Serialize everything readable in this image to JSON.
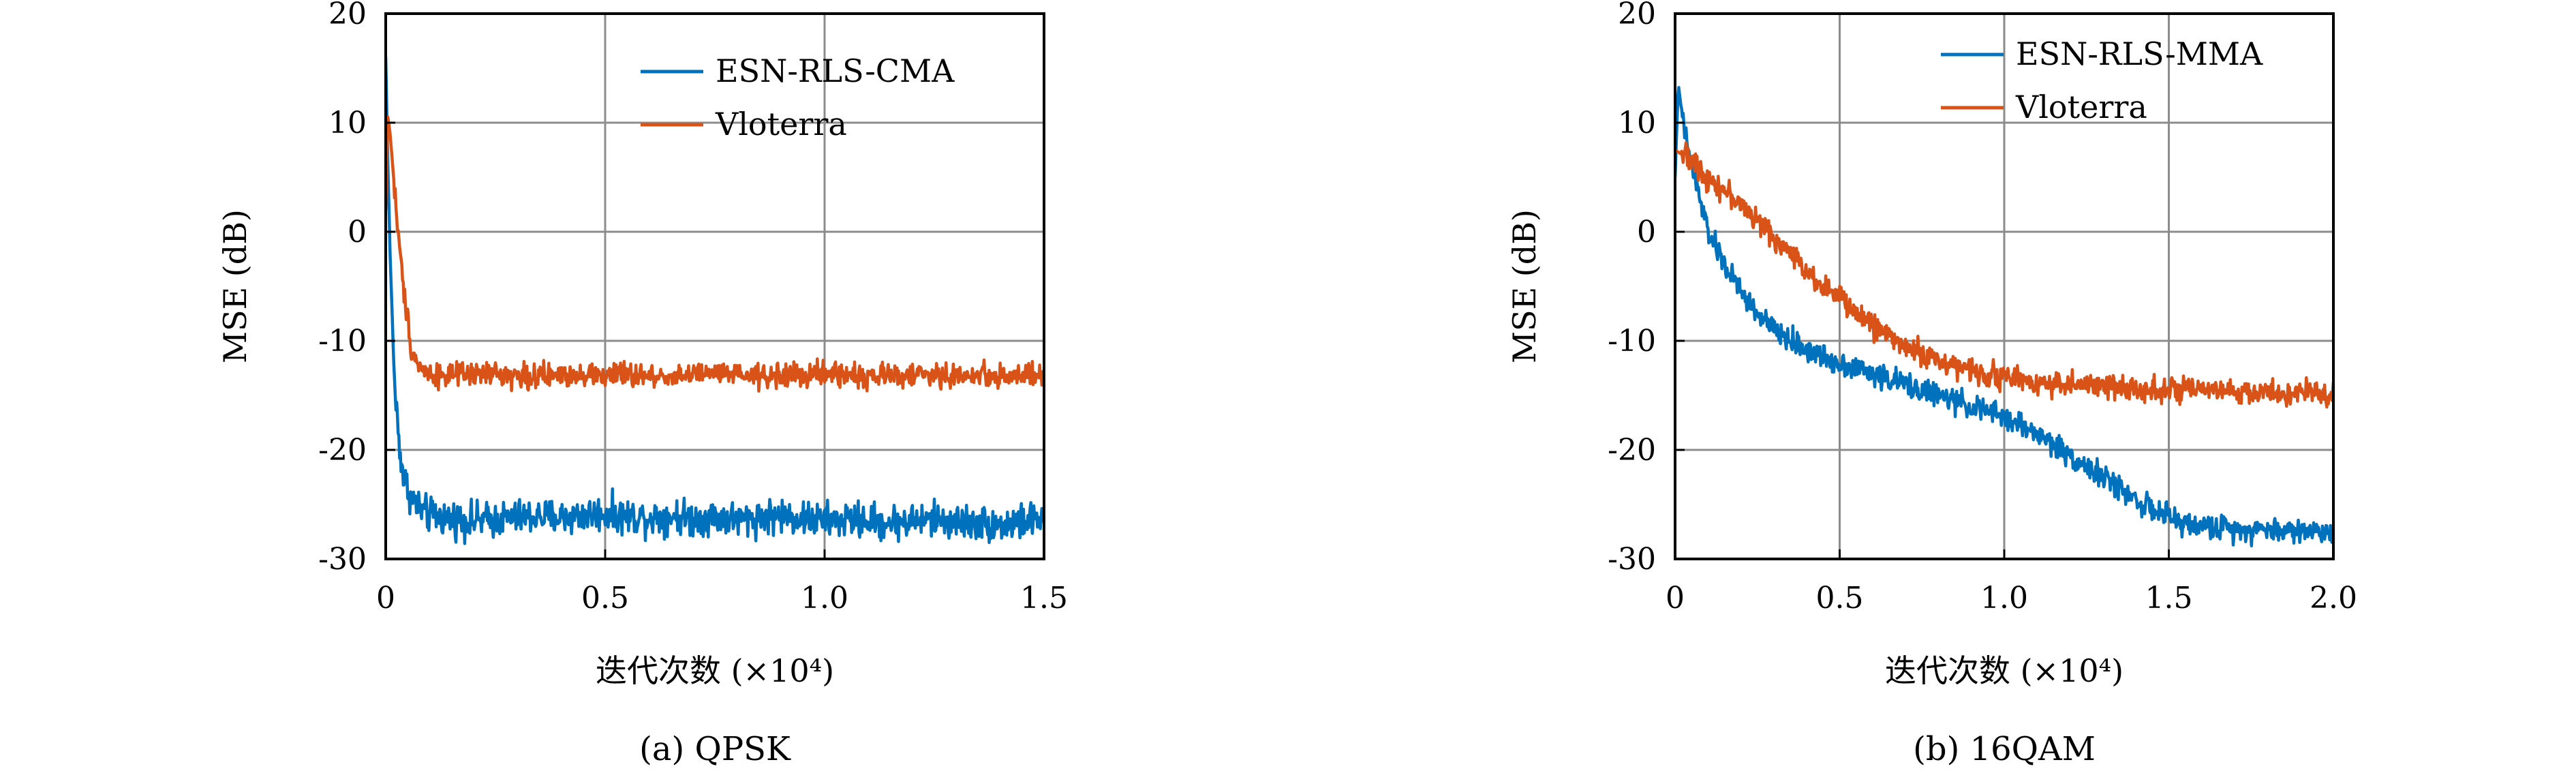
{
  "chart_data": [
    {
      "type": "line",
      "caption": "(a) QPSK",
      "xlabel": "迭代次数 (×10⁴)",
      "ylabel": "MSE (dB)",
      "xlim": [
        0,
        1.5
      ],
      "ylim": [
        -30,
        20
      ],
      "xticks": [
        "0",
        "0.5",
        "1.0",
        "1.5"
      ],
      "yticks": [
        "20",
        "10",
        "0",
        "-10",
        "-20",
        "-30"
      ],
      "xtick_values": [
        0,
        0.5,
        1.0,
        1.5
      ],
      "ytick_values": [
        20,
        10,
        0,
        -10,
        -20,
        -30
      ],
      "grid": true,
      "legend_position": "top-right",
      "series": [
        {
          "name": "ESN-RLS-CMA",
          "color": "#0072BD",
          "x": [
            0,
            0.005,
            0.01,
            0.015,
            0.02,
            0.03,
            0.04,
            0.06,
            0.08,
            0.1,
            0.15,
            0.2,
            0.25,
            0.3,
            0.35,
            0.4,
            0.45,
            0.5,
            0.55,
            0.6,
            0.65,
            0.7,
            0.75,
            0.8,
            0.85,
            0.9,
            0.95,
            1.0,
            1.05,
            1.1,
            1.15,
            1.2,
            1.25,
            1.3,
            1.35,
            1.4,
            1.45,
            1.5
          ],
          "y": [
            16,
            6,
            -2,
            -8,
            -14,
            -19,
            -22.5,
            -24.5,
            -25.5,
            -26,
            -26.3,
            -26.5,
            -26.4,
            -26.2,
            -26.1,
            -26.2,
            -26.0,
            -25.8,
            -26.1,
            -26.2,
            -26.0,
            -26.3,
            -26.1,
            -26.4,
            -26.2,
            -26.0,
            -26.3,
            -26.5,
            -26.4,
            -26.5,
            -26.7,
            -26.5,
            -26.4,
            -26.6,
            -26.7,
            -26.9,
            -26.6,
            -26.3
          ]
        },
        {
          "name": "Vloterra",
          "color": "#D95319",
          "x": [
            0,
            0.005,
            0.01,
            0.02,
            0.03,
            0.04,
            0.05,
            0.06,
            0.08,
            0.1,
            0.15,
            0.2,
            0.25,
            0.3,
            0.35,
            0.4,
            0.45,
            0.5,
            0.55,
            0.6,
            0.65,
            0.7,
            0.75,
            0.8,
            0.85,
            0.9,
            0.95,
            1.0,
            1.05,
            1.1,
            1.15,
            1.2,
            1.25,
            1.3,
            1.35,
            1.4,
            1.45,
            1.5
          ],
          "y": [
            2,
            10.5,
            9,
            4,
            -1,
            -5,
            -8,
            -11,
            -12.5,
            -13,
            -13.2,
            -13.1,
            -13.0,
            -13.2,
            -13.3,
            -13.1,
            -13.0,
            -13.2,
            -13.1,
            -13.3,
            -13.2,
            -13.1,
            -13.0,
            -13.2,
            -13.3,
            -13.1,
            -13.2,
            -13.0,
            -13.1,
            -13.3,
            -13.2,
            -13.1,
            -13.2,
            -13.3,
            -13.1,
            -13.2,
            -13.2,
            -13.3
          ]
        }
      ]
    },
    {
      "type": "line",
      "caption": "(b) 16QAM",
      "xlabel": "迭代次数 (×10⁴)",
      "ylabel": "MSE (dB)",
      "xlim": [
        0,
        2.0
      ],
      "ylim": [
        -30,
        20
      ],
      "xticks": [
        "0",
        "0.5",
        "1.0",
        "1.5",
        "2.0"
      ],
      "yticks": [
        "20",
        "10",
        "0",
        "-10",
        "-20",
        "-30"
      ],
      "xtick_values": [
        0,
        0.5,
        1.0,
        1.5,
        2.0
      ],
      "ytick_values": [
        20,
        10,
        0,
        -10,
        -20,
        -30
      ],
      "grid": true,
      "legend_position": "top-right",
      "series": [
        {
          "name": "ESN-RLS-MMA",
          "color": "#0072BD",
          "x": [
            0,
            0.01,
            0.02,
            0.03,
            0.05,
            0.08,
            0.1,
            0.15,
            0.2,
            0.25,
            0.3,
            0.35,
            0.4,
            0.45,
            0.5,
            0.6,
            0.7,
            0.8,
            0.9,
            1.0,
            1.1,
            1.2,
            1.3,
            1.4,
            1.45,
            1.5,
            1.55,
            1.6,
            1.7,
            1.8,
            1.9,
            2.0
          ],
          "y": [
            5,
            13.5,
            11,
            9,
            6,
            2.5,
            0,
            -3,
            -5.5,
            -7.5,
            -9,
            -10,
            -10.8,
            -11.5,
            -12,
            -13,
            -14,
            -15,
            -16,
            -17,
            -18.5,
            -20.5,
            -22.5,
            -24.5,
            -25.5,
            -26.2,
            -26.8,
            -27,
            -27.2,
            -27.3,
            -27.4,
            -27.5
          ]
        },
        {
          "name": "Vloterra",
          "color": "#D95319",
          "x": [
            0,
            0.05,
            0.1,
            0.15,
            0.2,
            0.25,
            0.3,
            0.35,
            0.4,
            0.45,
            0.5,
            0.55,
            0.6,
            0.65,
            0.7,
            0.75,
            0.8,
            0.85,
            0.9,
            1.0,
            1.1,
            1.2,
            1.3,
            1.4,
            1.5,
            1.6,
            1.7,
            1.8,
            1.9,
            2.0
          ],
          "y": [
            7.5,
            6.5,
            5,
            3.8,
            2.5,
            1,
            -0.5,
            -2,
            -3.5,
            -5,
            -6,
            -7.5,
            -8.5,
            -9.5,
            -10.5,
            -11.2,
            -11.8,
            -12.3,
            -12.8,
            -13.3,
            -13.8,
            -14.0,
            -14.2,
            -14.3,
            -14.5,
            -14.6,
            -14.7,
            -14.8,
            -14.8,
            -14.9
          ]
        }
      ]
    }
  ]
}
